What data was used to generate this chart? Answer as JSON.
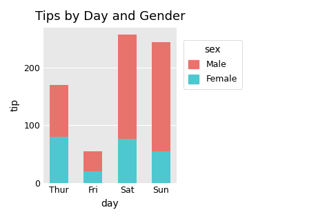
{
  "categories": [
    "Thur",
    "Fri",
    "Sat",
    "Sun"
  ],
  "female_values": [
    80,
    20,
    76,
    55
  ],
  "male_values": [
    90,
    35,
    182,
    190
  ],
  "female_color": "#4DC8D0",
  "male_color": "#E8736C",
  "title": "Tips by Day and Gender",
  "xlabel": "day",
  "ylabel": "tip",
  "legend_title": "sex",
  "legend_labels": [
    "Male",
    "Female"
  ],
  "ylim": [
    0,
    270
  ],
  "yticks": [
    0,
    100,
    200
  ],
  "plot_bg_color": "#E8E8E8",
  "fig_bg_color": "#FFFFFF",
  "grid_color": "#FFFFFF",
  "title_fontsize": 13,
  "axis_label_fontsize": 10,
  "tick_fontsize": 9,
  "legend_fontsize": 9,
  "bar_width": 0.55
}
